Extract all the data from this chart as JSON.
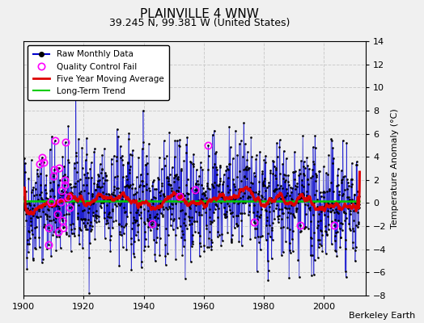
{
  "title": "PLAINVILLE 4 WNW",
  "subtitle": "39.245 N, 99.381 W (United States)",
  "ylabel": "Temperature Anomaly (°C)",
  "attribution": "Berkeley Earth",
  "xlim": [
    1900,
    2014
  ],
  "ylim": [
    -8,
    14
  ],
  "yticks": [
    -8,
    -6,
    -4,
    -2,
    0,
    2,
    4,
    6,
    8,
    10,
    12,
    14
  ],
  "xticks": [
    1900,
    1920,
    1940,
    1960,
    1980,
    2000
  ],
  "bg_color": "#f0f0f0",
  "plot_bg": "#f0f0f0",
  "raw_color": "#0000cc",
  "qc_color": "#ff00ff",
  "moving_avg_color": "#dd0000",
  "trend_color": "#00cc00",
  "grid_color": "#cccccc",
  "seed": 42,
  "start_year": 1900,
  "end_year": 2011,
  "n_months": 1344
}
